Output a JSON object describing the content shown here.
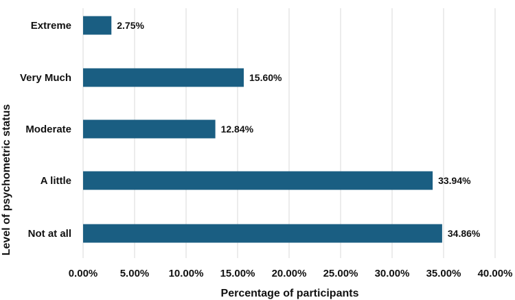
{
  "chart_data": {
    "type": "bar",
    "orientation": "horizontal",
    "categories": [
      "Extreme",
      "Very Much",
      "Moderate",
      "A little",
      "Not at all"
    ],
    "values": [
      2.75,
      15.6,
      12.84,
      33.94,
      34.86
    ],
    "data_labels": [
      "2.75%",
      "15.60%",
      "12.84%",
      "33.94%",
      "34.86%"
    ],
    "xlabel": "Percentage of participants",
    "ylabel": "Level of psychometric status",
    "xlim": [
      0,
      40
    ],
    "x_ticks": [
      "0.00%",
      "5.00%",
      "10.00%",
      "15.00%",
      "20.00%",
      "25.00%",
      "30.00%",
      "35.00%",
      "40.00%"
    ],
    "x_tick_values": [
      0,
      5,
      10,
      15,
      20,
      25,
      30,
      35,
      40
    ],
    "grid": "vertical",
    "legend": "none",
    "bar_color": "#1a5e82"
  }
}
